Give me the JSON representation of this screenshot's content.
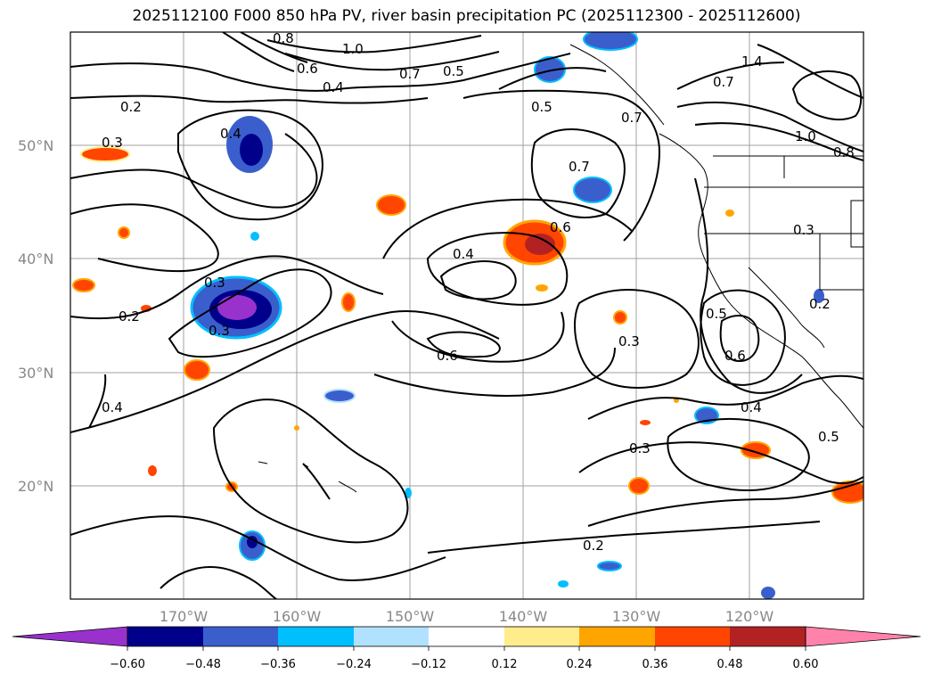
{
  "title": "2025112100 F000 850 hPa PV, river basin precipitation PC (2025112300 - 2025112600)",
  "map": {
    "lat_labels": [
      "50°N",
      "40°N",
      "30°N",
      "20°N"
    ],
    "lon_labels": [
      "170°W",
      "160°W",
      "150°W",
      "140°W",
      "130°W",
      "120°W"
    ],
    "contour_labels": [
      "1.0",
      "0.8",
      "0.6",
      "0.4",
      "0.7",
      "0.5",
      "1.4",
      "0.7",
      "1.0",
      "0.8",
      "0.2",
      "0.3",
      "0.4",
      "0.5",
      "0.7",
      "0.7",
      "0.6",
      "0.4",
      "0.3",
      "0.2",
      "0.3",
      "0.2",
      "0.3",
      "0.5",
      "0.6",
      "0.3",
      "0.6",
      "0.4",
      "0.5",
      "0.4",
      "0.3",
      "0.2"
    ],
    "gridline_color": "#a0a0a0",
    "contour_color": "#000000"
  },
  "colorbar": {
    "ticks": [
      "−0.60",
      "−0.48",
      "−0.36",
      "−0.24",
      "−0.12",
      "0.12",
      "0.24",
      "0.36",
      "0.48",
      "0.60"
    ],
    "colors": [
      "#9932cc",
      "#00008b",
      "#3a5fcd",
      "#00bfff",
      "#b0e2ff",
      "#ffffff",
      "#ffec8b",
      "#ffa500",
      "#ff4500",
      "#b22222",
      "#ff82ab"
    ]
  }
}
